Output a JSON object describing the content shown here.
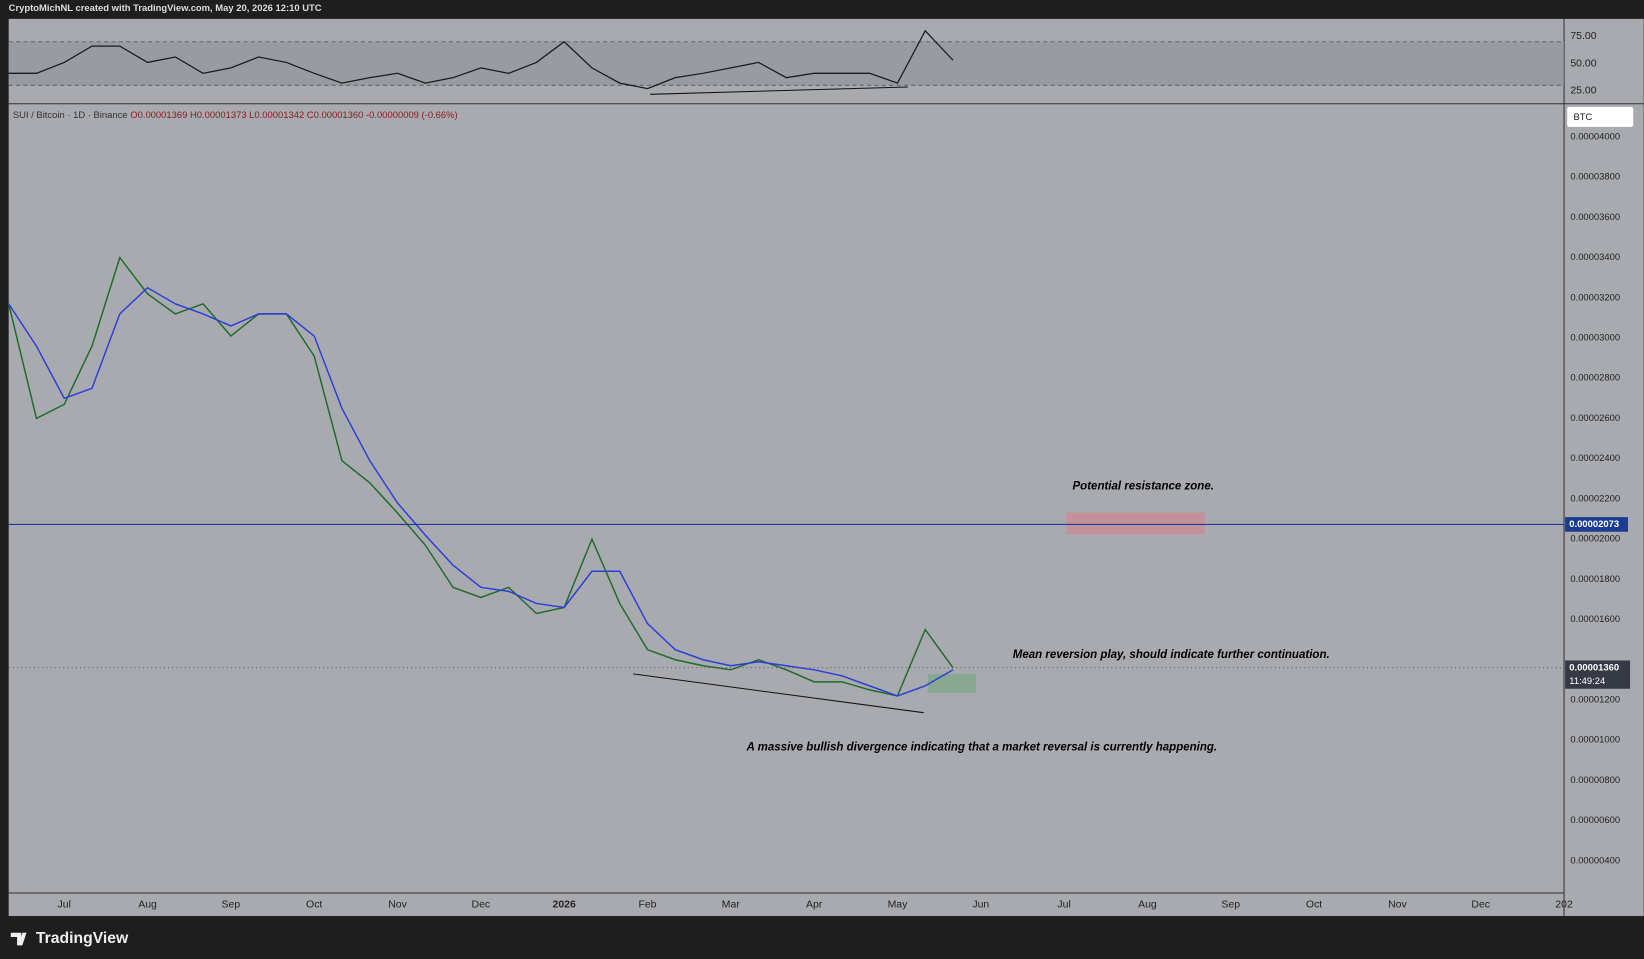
{
  "header": {
    "credit": "CryptoMichNL created with TradingView.com, May 20, 2026 12:10 UTC"
  },
  "footer": {
    "logo": "TradingView"
  },
  "chart_data": [
    {
      "type": "line",
      "ylim": [
        14,
        91
      ],
      "yticks": [
        {
          "value": 75,
          "label": "75.00"
        },
        {
          "value": 50,
          "label": "50.00"
        },
        {
          "value": 25,
          "label": "25.00"
        }
      ],
      "band": [
        30,
        70
      ],
      "series": [
        {
          "color": "#1a1a1a",
          "values": [
            41,
            41,
            51,
            66,
            66,
            51,
            56,
            41,
            46,
            56,
            51,
            41,
            32,
            37,
            41,
            32,
            37,
            46,
            41,
            51,
            70,
            46,
            32,
            27,
            37,
            41,
            46,
            51,
            37,
            41,
            41,
            41,
            32,
            80,
            53
          ]
        }
      ]
    },
    {
      "type": "line",
      "symbol": "SUI / Bitcoin · 1D · Binance",
      "ohlc": "O0.00001369 H0.00001373 L0.00001342 C0.00001360 -0.00000009 (-0.66%)",
      "currency": "BTC",
      "categories": [
        null,
        null,
        "Jul",
        null,
        null,
        "Aug",
        null,
        null,
        "Sep",
        null,
        null,
        "Oct",
        null,
        null,
        "Nov",
        null,
        null,
        "Dec",
        null,
        null,
        "2026",
        null,
        null,
        "Feb",
        null,
        null,
        "Mar",
        null,
        null,
        "Apr",
        null,
        null,
        "May",
        null,
        null,
        "Jun",
        null,
        null,
        "Jul",
        null,
        null,
        "Aug",
        null,
        null,
        "Sep",
        null,
        null,
        "Oct",
        null,
        null,
        "Nov",
        null,
        null,
        "Dec",
        null,
        null,
        "202"
      ],
      "series": [
        {
          "color": "#1e6b2a",
          "values": [
            3.17e-05,
            2.6e-05,
            2.67e-05,
            2.96e-05,
            3.4e-05,
            3.22e-05,
            3.12e-05,
            3.17e-05,
            3.01e-05,
            3.12e-05,
            3.12e-05,
            2.91e-05,
            2.39e-05,
            2.28e-05,
            2.13e-05,
            1.97e-05,
            1.76e-05,
            1.71e-05,
            1.76e-05,
            1.63e-05,
            1.66e-05,
            2e-05,
            1.68e-05,
            1.45e-05,
            1.4e-05,
            1.37e-05,
            1.35e-05,
            1.4e-05,
            1.35e-05,
            1.29e-05,
            1.29e-05,
            1.25e-05,
            1.22e-05,
            1.55e-05,
            1.36e-05,
            null,
            null,
            null,
            null,
            null,
            null,
            null,
            null,
            null,
            null,
            null,
            null,
            null,
            null,
            null,
            null,
            null,
            null,
            null,
            null,
            null,
            null
          ]
        },
        {
          "color": "#2a3fd6",
          "values": [
            3.17e-05,
            2.96e-05,
            2.7e-05,
            2.75e-05,
            3.12e-05,
            3.25e-05,
            3.17e-05,
            3.12e-05,
            3.06e-05,
            3.12e-05,
            3.12e-05,
            3.01e-05,
            2.65e-05,
            2.39e-05,
            2.18e-05,
            2.02e-05,
            1.87e-05,
            1.76e-05,
            1.74e-05,
            1.68e-05,
            1.66e-05,
            1.84e-05,
            1.84e-05,
            1.58e-05,
            1.45e-05,
            1.4e-05,
            1.37e-05,
            1.39e-05,
            1.37e-05,
            1.35e-05,
            1.32e-05,
            1.27e-05,
            1.22e-05,
            1.27e-05,
            1.35e-05,
            null,
            null,
            null,
            null,
            null,
            null,
            null,
            null,
            null,
            null,
            null,
            null,
            null,
            null,
            null,
            null,
            null,
            null,
            null,
            null,
            null,
            null
          ]
        }
      ],
      "ylim": [
        2.4e-06,
        4.16e-05
      ],
      "yticks": [
        {
          "value": 4e-05,
          "label": "0.00004000"
        },
        {
          "value": 3.8e-05,
          "label": "0.00003800"
        },
        {
          "value": 3.6e-05,
          "label": "0.00003600"
        },
        {
          "value": 3.4e-05,
          "label": "0.00003400"
        },
        {
          "value": 3.2e-05,
          "label": "0.00003200"
        },
        {
          "value": 3e-05,
          "label": "0.00003000"
        },
        {
          "value": 2.8e-05,
          "label": "0.00002800"
        },
        {
          "value": 2.6e-05,
          "label": "0.00002600"
        },
        {
          "value": 2.4e-05,
          "label": "0.00002400"
        },
        {
          "value": 2.2e-05,
          "label": "0.00002200"
        },
        {
          "value": 2e-05,
          "label": "0.00002000"
        },
        {
          "value": 1.8e-05,
          "label": "0.00001800"
        },
        {
          "value": 1.6e-05,
          "label": "0.00001600"
        },
        {
          "value": 1.2e-05,
          "label": "0.00001200"
        },
        {
          "value": 1e-05,
          "label": "0.00001000"
        },
        {
          "value": 8e-06,
          "label": "0.00000800"
        },
        {
          "value": 6e-06,
          "label": "0.00000600"
        },
        {
          "value": 4e-06,
          "label": "0.00000400"
        }
      ],
      "hline": {
        "value": 2.073e-05,
        "label": "0.00002073",
        "color": "#1c3d8f"
      },
      "last_price": {
        "value": 1.36e-05,
        "label": "0.00001360",
        "countdown": "11:49:24"
      },
      "annotations": [
        "Potential resistance zone.",
        "Mean reversion play, should indicate further continuation.",
        "A massive bullish divergence indicating that a market reversal is currently happening."
      ]
    }
  ]
}
